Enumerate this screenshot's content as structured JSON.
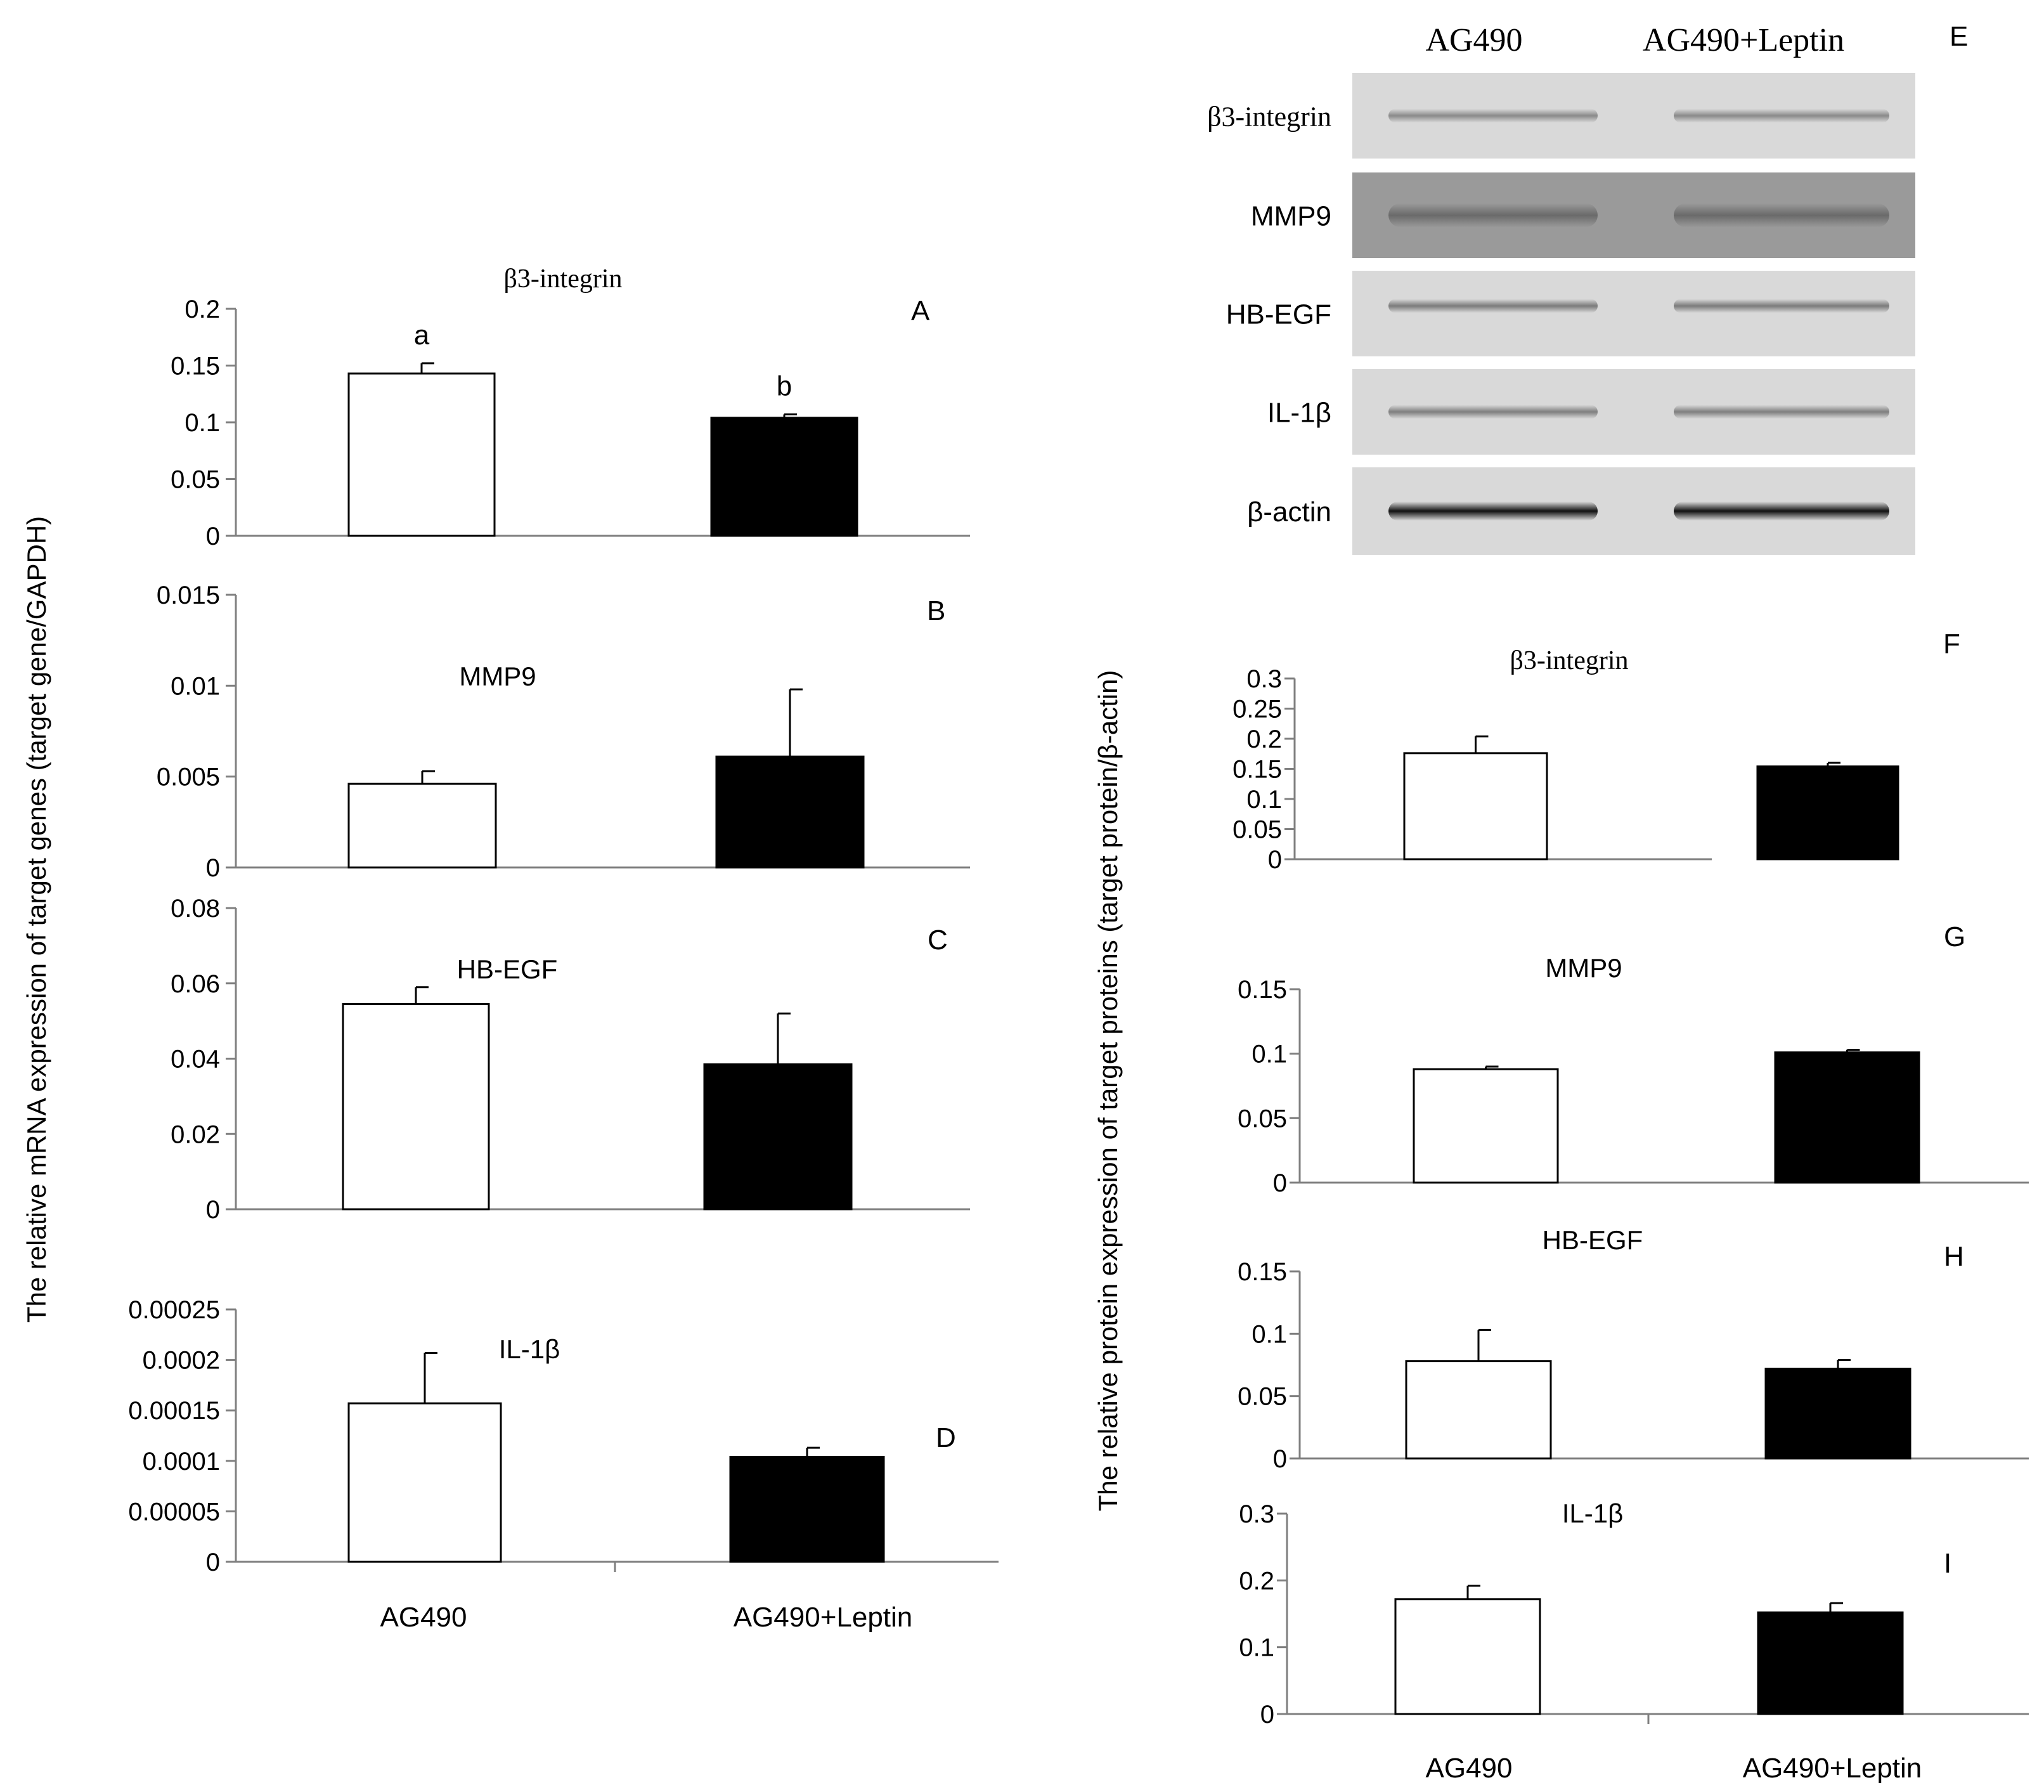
{
  "y_axis_titles": {
    "mrna": "The relative mRNA expression  of target genes (target gene/GAPDH)",
    "protein": "The relative protein expression of target proteins  (target protein/β-actin)"
  },
  "colors": {
    "group1_fill": "#ffffff",
    "group2_fill": "#000000",
    "axis": "#7f7f7f"
  },
  "blot": {
    "panel_letter": "E",
    "lanes": [
      "AG490",
      "AG490+Leptin"
    ],
    "rows": [
      {
        "label": "β3-integrin",
        "band_color": "#8a8a8a"
      },
      {
        "label": "MMP9",
        "band_color": "#6a6a6a"
      },
      {
        "label": "HB-EGF",
        "band_color": "#7a7a7a"
      },
      {
        "label": "IL-1β",
        "band_color": "#7e7e7e"
      },
      {
        "label": "β-actin",
        "band_color": "#111111"
      }
    ]
  },
  "chart_data": [
    {
      "id": "A",
      "type": "bar",
      "title": "β3-integrin",
      "categories": [
        "AG490",
        "AG490+Leptin"
      ],
      "values": [
        0.143,
        0.104
      ],
      "errors": [
        0.009,
        0.003
      ],
      "labels_above": [
        "a",
        "b"
      ],
      "ylim": [
        0,
        0.2
      ],
      "yticks": [
        0,
        0.05,
        0.1,
        0.15,
        0.2
      ],
      "ytick_labels": [
        "0",
        "0.05",
        "0.1",
        "0.15",
        "0.2"
      ]
    },
    {
      "id": "B",
      "type": "bar",
      "title": "MMP9",
      "categories": [
        "AG490",
        "AG490+Leptin"
      ],
      "values": [
        0.0046,
        0.0061
      ],
      "errors": [
        0.0007,
        0.0037
      ],
      "ylim": [
        0,
        0.015
      ],
      "yticks": [
        0,
        0.005,
        0.01,
        0.015
      ],
      "ytick_labels": [
        "0",
        "0.005",
        "0.01",
        "0.015"
      ]
    },
    {
      "id": "C",
      "type": "bar",
      "title": "HB-EGF",
      "categories": [
        "AG490",
        "AG490+Leptin"
      ],
      "values": [
        0.0545,
        0.0385
      ],
      "errors": [
        0.0045,
        0.0135
      ],
      "ylim": [
        0,
        0.08
      ],
      "yticks": [
        0,
        0.02,
        0.04,
        0.06,
        0.08
      ],
      "ytick_labels": [
        "0",
        "0.02",
        "0.04",
        "0.06",
        "0.08"
      ]
    },
    {
      "id": "D",
      "type": "bar",
      "title": "IL-1β",
      "categories": [
        "AG490",
        "AG490+Leptin"
      ],
      "values": [
        0.000157,
        0.000104
      ],
      "errors": [
        5e-05,
        9e-06
      ],
      "ylim": [
        0,
        0.00025
      ],
      "yticks": [
        0,
        5e-05,
        0.0001,
        0.00015,
        0.0002,
        0.00025
      ],
      "ytick_labels": [
        "0",
        "0.00005",
        "0.0001",
        "0.00015",
        "0.0002",
        "0.00025"
      ],
      "xtick_labels": [
        "AG490",
        "AG490+Leptin"
      ]
    },
    {
      "id": "F",
      "type": "bar",
      "title": "β3-integrin",
      "categories": [
        "AG490",
        "AG490+Leptin"
      ],
      "values": [
        0.176,
        0.154
      ],
      "errors": [
        0.028,
        0.006
      ],
      "ylim": [
        0,
        0.3
      ],
      "yticks": [
        0,
        0.05,
        0.1,
        0.15,
        0.2,
        0.25,
        0.3
      ],
      "ytick_labels": [
        "0",
        "0.05",
        "0.1",
        "0.15",
        "0.2",
        "0.25",
        "0.3"
      ]
    },
    {
      "id": "G",
      "type": "bar",
      "title": "MMP9",
      "categories": [
        "AG490",
        "AG490+Leptin"
      ],
      "values": [
        0.088,
        0.101
      ],
      "errors": [
        0.002,
        0.002
      ],
      "ylim": [
        0,
        0.15
      ],
      "yticks": [
        0,
        0.05,
        0.1,
        0.15
      ],
      "ytick_labels": [
        "0",
        "0.05",
        "0.1",
        "0.15"
      ]
    },
    {
      "id": "H",
      "type": "bar",
      "title": "HB-EGF",
      "categories": [
        "AG490",
        "AG490+Leptin"
      ],
      "values": [
        0.078,
        0.072
      ],
      "errors": [
        0.025,
        0.007
      ],
      "ylim": [
        0,
        0.15
      ],
      "yticks": [
        0,
        0.05,
        0.1,
        0.15
      ],
      "ytick_labels": [
        "0",
        "0.05",
        "0.1",
        "0.15"
      ]
    },
    {
      "id": "I",
      "type": "bar",
      "title": "IL-1β",
      "categories": [
        "AG490",
        "AG490+Leptin"
      ],
      "values": [
        0.172,
        0.152
      ],
      "errors": [
        0.02,
        0.014
      ],
      "ylim": [
        0,
        0.3
      ],
      "yticks": [
        0,
        0.1,
        0.2,
        0.3
      ],
      "ytick_labels": [
        "0",
        "0.1",
        "0.2",
        "0.3"
      ],
      "xtick_labels": [
        "AG490",
        "AG490+Leptin"
      ]
    }
  ]
}
